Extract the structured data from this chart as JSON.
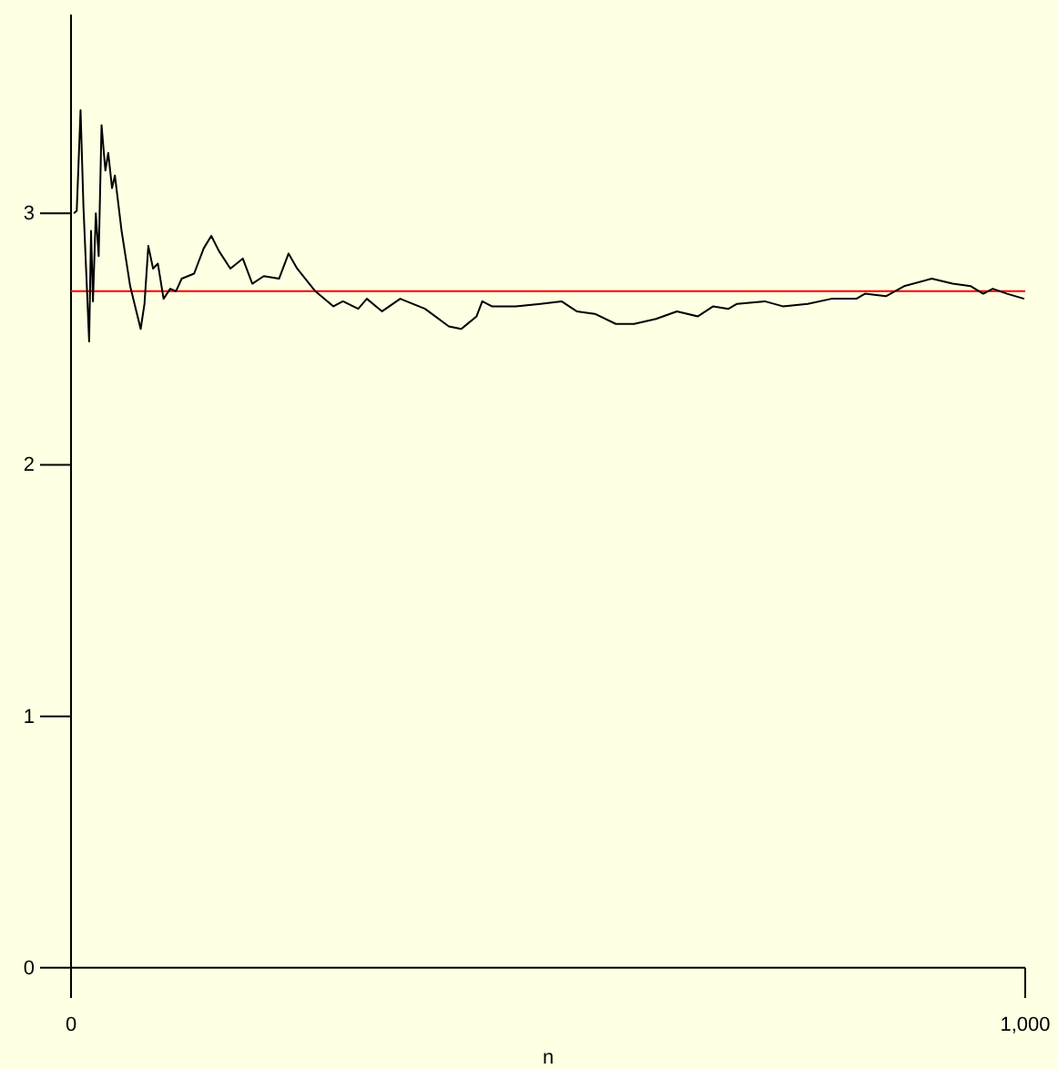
{
  "chart_data": {
    "type": "line",
    "xlabel": "n",
    "x": [
      3,
      6,
      10,
      13,
      19,
      21,
      23,
      26,
      29,
      32,
      36,
      39,
      43,
      46,
      53,
      62,
      73,
      77,
      81,
      86,
      91,
      97,
      104,
      110,
      116,
      129,
      139,
      147,
      155,
      167,
      180,
      190,
      202,
      218,
      228,
      237,
      256,
      275,
      285,
      301,
      310,
      326,
      345,
      371,
      396,
      409,
      425,
      431,
      441,
      466,
      492,
      514,
      530,
      549,
      571,
      590,
      613,
      635,
      657,
      673,
      689,
      698,
      727,
      746,
      772,
      797,
      823,
      832,
      854,
      873,
      902,
      924,
      943,
      956,
      966,
      981,
      999
    ],
    "series": [
      {
        "color": "#000000",
        "values": [
          3.0,
          3.01,
          3.41,
          3.03,
          2.49,
          2.93,
          2.65,
          3.0,
          2.83,
          3.35,
          3.17,
          3.24,
          3.1,
          3.15,
          2.93,
          2.71,
          2.54,
          2.64,
          2.87,
          2.78,
          2.8,
          2.66,
          2.7,
          2.69,
          2.74,
          2.76,
          2.86,
          2.91,
          2.85,
          2.78,
          2.82,
          2.72,
          2.75,
          2.74,
          2.84,
          2.78,
          2.69,
          2.63,
          2.65,
          2.62,
          2.66,
          2.61,
          2.66,
          2.62,
          2.55,
          2.54,
          2.59,
          2.65,
          2.63,
          2.63,
          2.64,
          2.65,
          2.61,
          2.6,
          2.56,
          2.56,
          2.58,
          2.61,
          2.59,
          2.63,
          2.62,
          2.64,
          2.65,
          2.63,
          2.64,
          2.66,
          2.66,
          2.68,
          2.67,
          2.71,
          2.74,
          2.72,
          2.71,
          2.68,
          2.7,
          2.68,
          2.66
        ]
      }
    ],
    "xlim": [
      0,
      1000
    ],
    "xticks": [
      0,
      {
        "value": 1000,
        "label": "1,000"
      }
    ],
    "ylim": [
      -0.12,
      3.79
    ],
    "yticks": [
      0,
      1,
      2,
      3
    ],
    "ref_lines": [
      {
        "axis": "y",
        "value": 2.69,
        "color": "#ff0000"
      }
    ],
    "grid": false,
    "legend": false,
    "marker": "none",
    "line_style": "solid"
  }
}
